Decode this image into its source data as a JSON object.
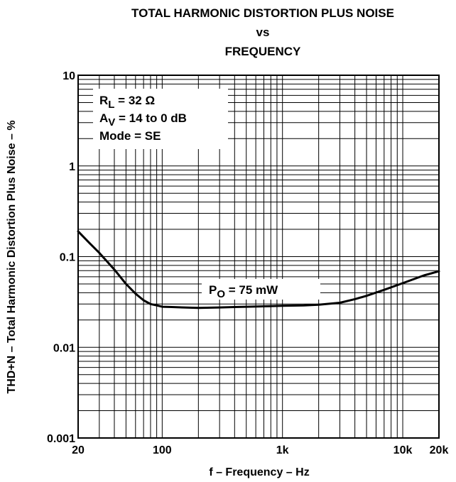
{
  "chart_data": {
    "type": "line",
    "title": [
      "TOTAL HARMONIC DISTORTION PLUS NOISE",
      "vs",
      "FREQUENCY"
    ],
    "xlabel": "f – Frequency – Hz",
    "ylabel": "THD+N – Total Harmonic Distortion Plus Noise – %",
    "x_scale": "log",
    "y_scale": "log",
    "xlim": [
      20,
      20000
    ],
    "ylim": [
      0.001,
      10
    ],
    "grid": true,
    "x_ticks": [
      {
        "value": 20,
        "label": "20"
      },
      {
        "value": 100,
        "label": "100"
      },
      {
        "value": 1000,
        "label": "1k"
      },
      {
        "value": 10000,
        "label": "10k"
      },
      {
        "value": 20000,
        "label": "20k"
      }
    ],
    "y_ticks": [
      {
        "value": 10,
        "label": "10"
      },
      {
        "value": 1,
        "label": "1"
      },
      {
        "value": 0.1,
        "label": "0.1"
      },
      {
        "value": 0.01,
        "label": "0.01"
      },
      {
        "value": 0.001,
        "label": "0.001"
      }
    ],
    "legend_box": [
      {
        "main": "R",
        "sub": "L",
        "rest": " = 32 Ω"
      },
      {
        "main": "A",
        "sub": "V",
        "rest": " = 14 to 0 dB"
      },
      {
        "main": "Mode = SE",
        "sub": "",
        "rest": ""
      }
    ],
    "series": [
      {
        "label": {
          "main": "P",
          "sub": "O",
          "rest": " = 75 mW"
        },
        "color": "#000000",
        "x": [
          20,
          25,
          30,
          40,
          50,
          60,
          70,
          80,
          90,
          100,
          120,
          150,
          200,
          300,
          400,
          500,
          700,
          1000,
          1500,
          2000,
          3000,
          4000,
          5000,
          7000,
          10000,
          15000,
          20000
        ],
        "y": [
          0.19,
          0.14,
          0.11,
          0.072,
          0.05,
          0.039,
          0.033,
          0.03,
          0.029,
          0.028,
          0.0278,
          0.0275,
          0.0272,
          0.0275,
          0.0278,
          0.028,
          0.0283,
          0.0287,
          0.029,
          0.0295,
          0.031,
          0.034,
          0.037,
          0.043,
          0.051,
          0.062,
          0.069
        ]
      }
    ]
  }
}
